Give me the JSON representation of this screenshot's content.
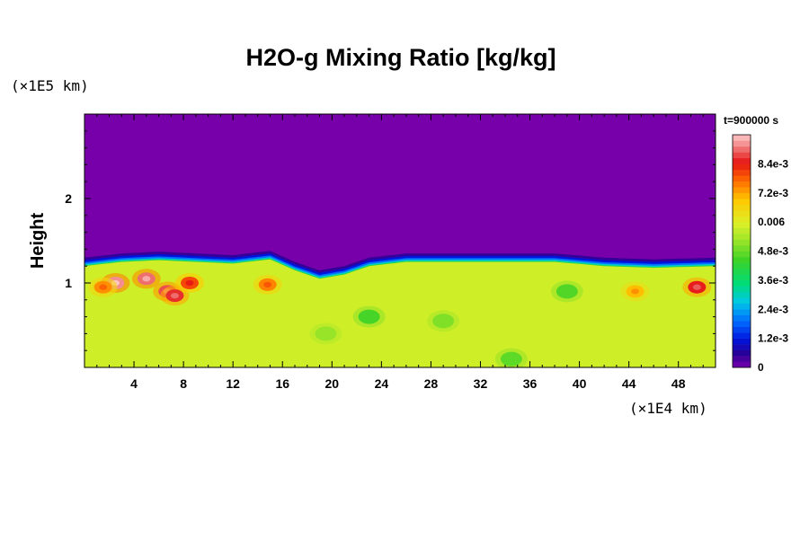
{
  "chart_data": {
    "type": "heatmap",
    "title": "H2O-g Mixing Ratio [kg/kg]",
    "xlabel_unit": "(×1E4 km)",
    "ylabel": "Height",
    "ylabel_unit": "(×1E5 km)",
    "time_label": "t=900000 s",
    "x_ticks": [
      "4",
      "8",
      "12",
      "16",
      "20",
      "24",
      "28",
      "32",
      "36",
      "40",
      "44",
      "48"
    ],
    "y_ticks": [
      "1",
      "2"
    ],
    "xlim": [
      0,
      51
    ],
    "ylim": [
      0,
      3
    ],
    "colorbar": {
      "range": [
        0,
        0.0096
      ],
      "labels": [
        {
          "value": 0,
          "text": "0"
        },
        {
          "value": 0.0012,
          "text": "1.2e-3"
        },
        {
          "value": 0.0024,
          "text": "2.4e-3"
        },
        {
          "value": 0.0036,
          "text": "3.6e-3"
        },
        {
          "value": 0.0048,
          "text": "4.8e-3"
        },
        {
          "value": 0.006,
          "text": "0.006"
        },
        {
          "value": 0.0072,
          "text": "7.2e-3"
        },
        {
          "value": 0.0084,
          "text": "8.4e-3"
        }
      ]
    },
    "moist_layer_top": {
      "x": [
        0,
        3,
        6,
        9,
        12,
        15,
        17,
        19,
        21,
        23,
        26,
        30,
        34,
        38,
        42,
        46,
        51
      ],
      "height": [
        1.2,
        1.25,
        1.27,
        1.25,
        1.23,
        1.28,
        1.15,
        1.05,
        1.1,
        1.2,
        1.25,
        1.25,
        1.25,
        1.25,
        1.2,
        1.18,
        1.2
      ]
    },
    "background_value": 0.0058,
    "features": [
      {
        "x": 2.5,
        "y": 1.0,
        "value": 0.0092
      },
      {
        "x": 5.0,
        "y": 1.05,
        "value": 0.009
      },
      {
        "x": 6.7,
        "y": 0.9,
        "value": 0.0088
      },
      {
        "x": 7.3,
        "y": 0.85,
        "value": 0.0086
      },
      {
        "x": 8.5,
        "y": 1.0,
        "value": 0.008
      },
      {
        "x": 1.5,
        "y": 0.95,
        "value": 0.0074
      },
      {
        "x": 14.8,
        "y": 0.98,
        "value": 0.0075
      },
      {
        "x": 44.5,
        "y": 0.9,
        "value": 0.007
      },
      {
        "x": 49.5,
        "y": 0.95,
        "value": 0.0085
      },
      {
        "x": 23.0,
        "y": 0.6,
        "value": 0.0045
      },
      {
        "x": 39.0,
        "y": 0.9,
        "value": 0.0046
      },
      {
        "x": 34.5,
        "y": 0.1,
        "value": 0.0047
      },
      {
        "x": 29.0,
        "y": 0.55,
        "value": 0.005
      },
      {
        "x": 19.5,
        "y": 0.4,
        "value": 0.0052
      }
    ]
  }
}
